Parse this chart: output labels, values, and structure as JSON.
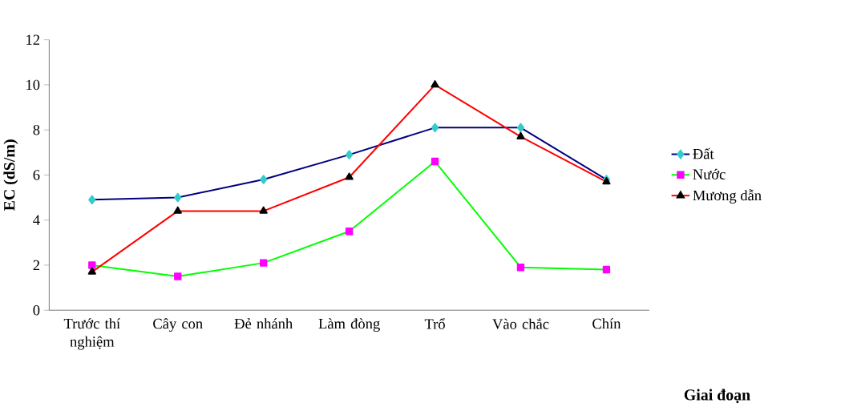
{
  "chart_data": {
    "type": "line",
    "xlabel": "Giai đoạn",
    "ylabel": "EC (dS/m)",
    "categories": [
      "Trước thí nghiệm",
      "Cây con",
      "Đẻ nhánh",
      "Làm đòng",
      "Trổ",
      "Vào chắc",
      "Chín"
    ],
    "series": [
      {
        "name": "Đất",
        "color": "#000080",
        "marker": "diamond",
        "colors": [
          "#33cccc",
          "#33cccc",
          "#33cccc",
          "#33cccc",
          "#33cccc",
          "#33cccc",
          "#33cccc"
        ],
        "values": [
          4.9,
          5.0,
          5.8,
          6.9,
          8.1,
          8.1,
          5.8
        ]
      },
      {
        "name": "Nước",
        "color": "#00ff00",
        "marker": "square",
        "colors": [
          "#ff00ff",
          "#ff00ff",
          "#ff00ff",
          "#ff00ff",
          "#ff00ff",
          "#ff00ff",
          "#ff00ff"
        ],
        "values": [
          2.0,
          1.5,
          2.1,
          3.5,
          6.6,
          1.9,
          1.8
        ]
      },
      {
        "name": "Mương dẫn",
        "color": "#ff0000",
        "marker": "triangle",
        "colors": [
          "#000000",
          "#000000",
          "#000000",
          "#000000",
          "#000000",
          "#000000",
          "#000000"
        ],
        "values": [
          1.7,
          4.4,
          4.4,
          5.9,
          10.0,
          7.7,
          5.7
        ]
      }
    ],
    "ylim": [
      0,
      12
    ],
    "yticks": [
      0,
      2,
      4,
      6,
      8,
      10,
      12
    ],
    "grid": false,
    "legend": "right"
  }
}
